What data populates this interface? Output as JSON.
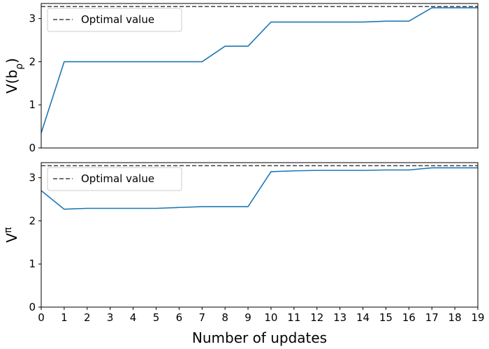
{
  "chart_data": [
    {
      "type": "line",
      "xlabel": "",
      "ylabel": "V(b_ρ)",
      "ylim": [
        0,
        3.35
      ],
      "xlim": [
        0,
        19
      ],
      "yticks": [
        0,
        1,
        2,
        3
      ],
      "xticks": [],
      "legend": {
        "placement": "top-left",
        "entries": [
          "Optimal value"
        ]
      },
      "optimal_value": 3.28,
      "series": [
        {
          "x": [
            0,
            1,
            2,
            3,
            4,
            5,
            6,
            7,
            8,
            9,
            10,
            11,
            12,
            13,
            14,
            15,
            16,
            17,
            18,
            19
          ],
          "values": [
            0.35,
            2.0,
            2.0,
            2.0,
            2.0,
            2.0,
            2.0,
            2.0,
            2.36,
            2.36,
            2.92,
            2.92,
            2.92,
            2.92,
            2.92,
            2.94,
            2.94,
            3.25,
            3.25,
            3.25
          ],
          "color": "#1f77b4"
        }
      ]
    },
    {
      "type": "line",
      "xlabel": "Number of updates",
      "ylabel": "V^π",
      "ylim": [
        0,
        3.35
      ],
      "xlim": [
        0,
        19
      ],
      "yticks": [
        0,
        1,
        2,
        3
      ],
      "xticks": [
        0,
        1,
        2,
        3,
        4,
        5,
        6,
        7,
        8,
        9,
        10,
        11,
        12,
        13,
        14,
        15,
        16,
        17,
        18,
        19
      ],
      "legend": {
        "placement": "top-left",
        "entries": [
          "Optimal value"
        ]
      },
      "optimal_value": 3.28,
      "series": [
        {
          "x": [
            0,
            1,
            2,
            3,
            4,
            5,
            6,
            7,
            8,
            9,
            10,
            11,
            12,
            13,
            14,
            15,
            16,
            17,
            18,
            19
          ],
          "values": [
            2.7,
            2.27,
            2.29,
            2.29,
            2.29,
            2.29,
            2.31,
            2.33,
            2.33,
            2.33,
            3.14,
            3.16,
            3.17,
            3.17,
            3.17,
            3.18,
            3.18,
            3.23,
            3.23,
            3.23
          ],
          "color": "#1f77b4"
        }
      ]
    }
  ],
  "colors": {
    "series": "#1f77b4",
    "optimal_line": "#404040"
  }
}
